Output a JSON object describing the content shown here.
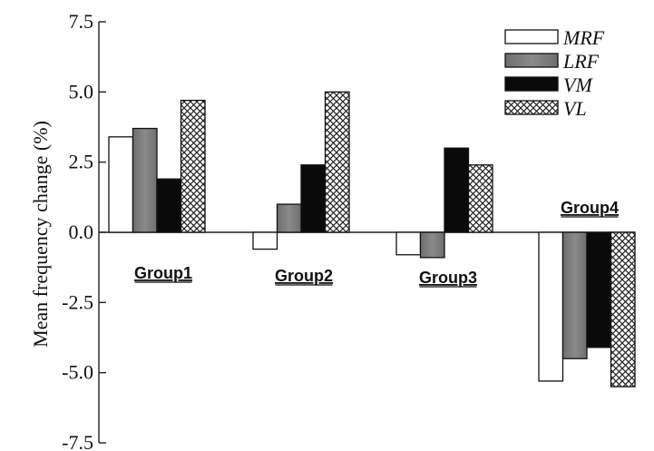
{
  "chart_data": {
    "type": "bar",
    "ylabel": "Mean frequency change (%)",
    "ylim": [
      -7.5,
      7.5
    ],
    "yticks": [
      7.5,
      5.0,
      2.5,
      0.0,
      -2.5,
      -5.0,
      -7.5
    ],
    "ytick_labels": [
      "7.5",
      "5.0",
      "2.5",
      "0.0",
      "-2.5",
      "-5.0",
      "-7.5"
    ],
    "categories": [
      "Group1",
      "Group2",
      "Group3",
      "Group4"
    ],
    "series": [
      {
        "name": "MRF",
        "pattern": "white",
        "values": [
          3.4,
          -0.6,
          -0.8,
          -5.3
        ]
      },
      {
        "name": "LRF",
        "pattern": "gray",
        "values": [
          3.7,
          1.0,
          -0.9,
          -4.5
        ]
      },
      {
        "name": "VM",
        "pattern": "black",
        "values": [
          1.9,
          2.4,
          3.0,
          -4.1
        ]
      },
      {
        "name": "VL",
        "pattern": "crosshatch",
        "values": [
          4.7,
          5.0,
          2.4,
          -5.5
        ]
      }
    ],
    "legend_position": "top-right",
    "grid": false
  }
}
